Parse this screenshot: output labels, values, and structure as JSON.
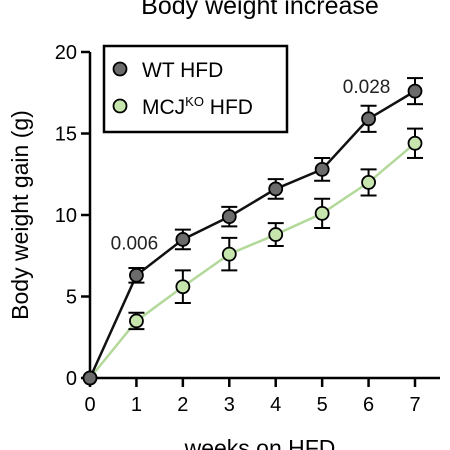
{
  "chart_data": {
    "type": "line",
    "title": "Body weight increase",
    "xlabel": "weeks on HFD",
    "ylabel": "Body weight gain (g)",
    "x": [
      0,
      1,
      2,
      3,
      4,
      5,
      6,
      7
    ],
    "xlim": [
      0,
      7
    ],
    "ylim": [
      0,
      20
    ],
    "xticks": [
      0,
      1,
      2,
      3,
      4,
      5,
      6,
      7
    ],
    "yticks": [
      0,
      5,
      10,
      15,
      20
    ],
    "grid": false,
    "legend_position": "top-left",
    "series": [
      {
        "name": "WT HFD",
        "legend_label": {
          "base": "WT HFD",
          "sup": ""
        },
        "line_color": "#111111",
        "marker_color": "#6b6b6b",
        "values": [
          0,
          6.3,
          8.5,
          9.9,
          11.6,
          12.8,
          15.9,
          17.6
        ],
        "errors": [
          0,
          0.45,
          0.6,
          0.6,
          0.6,
          0.7,
          0.8,
          0.8
        ]
      },
      {
        "name": "MCJKO HFD",
        "legend_label": {
          "base": "MCJ",
          "sup": "KO",
          "suffix": " HFD"
        },
        "line_color": "#b3d99a",
        "marker_color": "#c6e6ad",
        "values": [
          0,
          3.5,
          5.6,
          7.6,
          8.8,
          10.1,
          12.0,
          14.4
        ],
        "errors": [
          0,
          0.5,
          1.0,
          1.0,
          0.7,
          0.9,
          0.8,
          0.9
        ]
      }
    ],
    "annotations": [
      {
        "text": "0.006",
        "x": 1
      },
      {
        "text": "0.028",
        "x": 6
      }
    ]
  }
}
